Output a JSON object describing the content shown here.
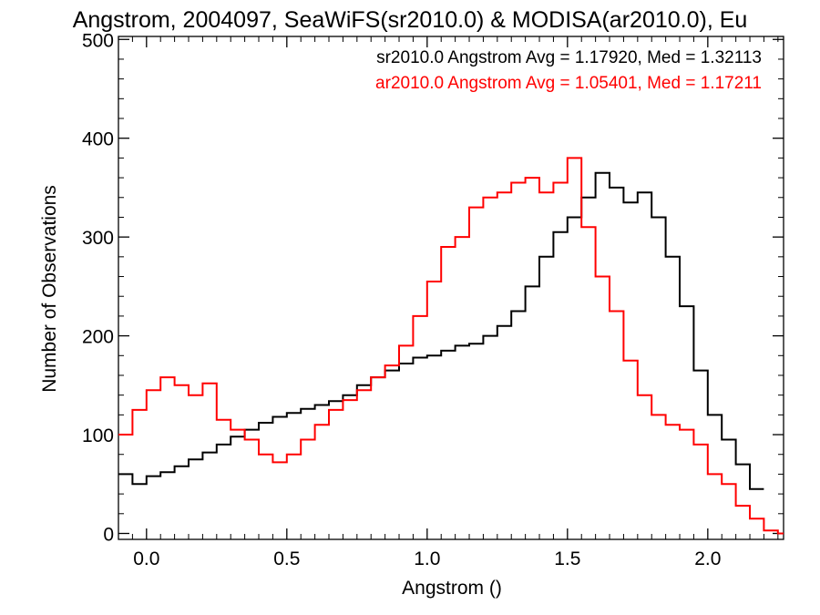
{
  "chart_data": {
    "type": "line",
    "title": "Angstrom, 2004097, SeaWiFS(sr2010.0) & MODISA(ar2010.0), Eu",
    "xlabel": "Angstrom ()",
    "ylabel": "Number of Observations",
    "xlim": [
      -0.1,
      2.27
    ],
    "ylim": [
      -6,
      503
    ],
    "x_ticks": [
      "0.0",
      "0.5",
      "1.0",
      "1.5",
      "2.0"
    ],
    "y_ticks": [
      "0",
      "100",
      "200",
      "300",
      "400",
      "500"
    ],
    "grid": false,
    "legend_position": "top-right",
    "series": [
      {
        "name": "sr2010.0 Angstrom Avg = 1.17920, Med = 1.32113",
        "color": "#000000",
        "x": [
          -0.1,
          -0.05,
          0.0,
          0.05,
          0.1,
          0.15,
          0.2,
          0.25,
          0.3,
          0.35,
          0.4,
          0.45,
          0.5,
          0.55,
          0.6,
          0.65,
          0.7,
          0.75,
          0.8,
          0.85,
          0.9,
          0.95,
          1.0,
          1.05,
          1.1,
          1.15,
          1.2,
          1.25,
          1.3,
          1.35,
          1.4,
          1.45,
          1.5,
          1.55,
          1.6,
          1.65,
          1.7,
          1.75,
          1.8,
          1.85,
          1.9,
          1.95,
          2.0,
          2.05,
          2.1,
          2.15
        ],
        "y": [
          60,
          50,
          58,
          62,
          68,
          75,
          82,
          90,
          98,
          105,
          112,
          118,
          122,
          126,
          130,
          134,
          140,
          150,
          158,
          165,
          172,
          178,
          180,
          185,
          190,
          192,
          200,
          210,
          225,
          250,
          280,
          305,
          320,
          340,
          365,
          350,
          335,
          345,
          320,
          280,
          230,
          165,
          120,
          95,
          70,
          45
        ]
      },
      {
        "name": "ar2010.0 Angstrom Avg = 1.05401, Med = 1.17211",
        "color": "#ff0000",
        "x": [
          -0.1,
          -0.05,
          0.0,
          0.05,
          0.1,
          0.15,
          0.2,
          0.25,
          0.3,
          0.35,
          0.4,
          0.45,
          0.5,
          0.55,
          0.6,
          0.65,
          0.7,
          0.75,
          0.8,
          0.85,
          0.9,
          0.95,
          1.0,
          1.05,
          1.1,
          1.15,
          1.2,
          1.25,
          1.3,
          1.35,
          1.4,
          1.45,
          1.5,
          1.55,
          1.6,
          1.65,
          1.7,
          1.75,
          1.8,
          1.85,
          1.9,
          1.95,
          2.0,
          2.05,
          2.1,
          2.15,
          2.2,
          2.25
        ],
        "y": [
          100,
          125,
          145,
          158,
          150,
          140,
          152,
          115,
          105,
          95,
          80,
          72,
          80,
          95,
          110,
          125,
          135,
          145,
          158,
          170,
          190,
          220,
          255,
          290,
          300,
          330,
          340,
          345,
          355,
          360,
          345,
          355,
          380,
          310,
          260,
          225,
          175,
          140,
          120,
          110,
          105,
          90,
          60,
          50,
          28,
          15,
          3,
          0
        ]
      }
    ]
  }
}
